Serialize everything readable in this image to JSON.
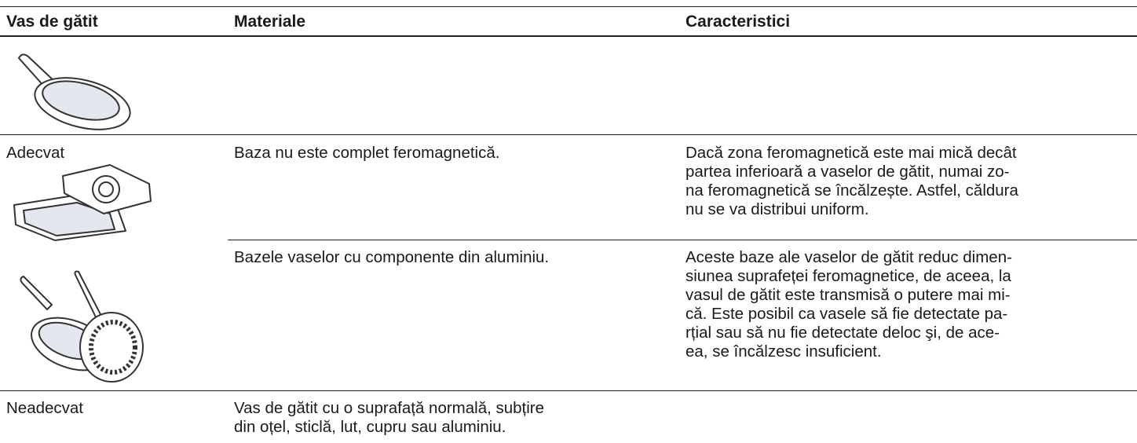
{
  "table": {
    "header": [
      "Vas de gătit",
      "Materiale",
      "Caracteristici"
    ],
    "rows": [
      {
        "cookware": "Adecvat",
        "items": [
          {
            "material": [
              "Baza nu este complet feromagnetică."
            ],
            "characteristics": [
              "Dacă zona feromagnetică este mai mică decât",
              "partea inferioară a vaselor de gătit, numai zo-",
              "na feromagnetică se încălzește. Astfel, căldura",
              "nu se va distribui uniform."
            ]
          },
          {
            "material": [
              "Bazele vaselor cu componente din aluminiu."
            ],
            "characteristics": [
              "Aceste baze ale vaselor de gătit reduc dimen-",
              "siunea suprafeței feromagnetice, de aceea, la",
              "vasul de gătit este transmisă o putere mai mi-",
              "că. Este posibil ca vasele să fie detectate pa-",
              "rțial sau să nu fie detectate deloc şi, de ace-",
              "ea, se încălzesc insuficient."
            ]
          }
        ]
      },
      {
        "cookware": "Neadecvat",
        "items": [
          {
            "material": [
              "Vas de gătit cu o suprafață normală, subțire",
              "din oțel, sticlă, lut, cupru sau aluminiu."
            ]
          }
        ]
      }
    ]
  }
}
